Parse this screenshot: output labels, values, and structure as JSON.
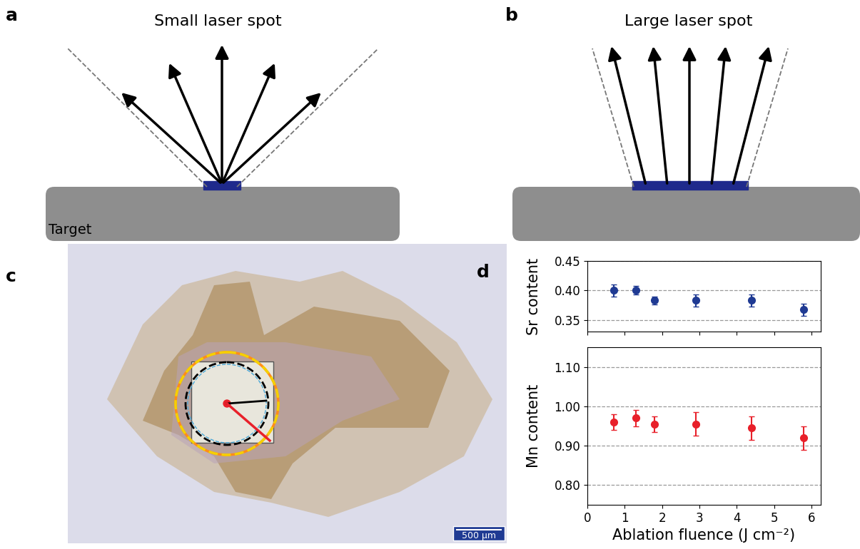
{
  "panels": {
    "a": {
      "panel_label": "a",
      "title": "Small laser spot",
      "target_label": "Target"
    },
    "b": {
      "panel_label": "b",
      "title": "Large laser spot"
    },
    "c": {
      "panel_label": "c",
      "scale_bar": "500 µm"
    }
  },
  "chart_data": [
    {
      "panel_label": "d",
      "type": "scatter",
      "y_label": "Sr content",
      "x": [
        0.7,
        1.3,
        1.8,
        2.9,
        4.4,
        5.8
      ],
      "values": [
        0.4,
        0.4,
        0.383,
        0.383,
        0.383,
        0.367
      ],
      "errors": [
        0.01,
        0.007,
        0.007,
        0.01,
        0.01,
        0.01
      ],
      "color": "#1f3a93",
      "marker": "o",
      "xlim": [
        0,
        6.25
      ],
      "xticks": [
        0,
        1,
        2,
        3,
        4,
        5,
        6
      ],
      "ylim": [
        0.33,
        0.45
      ],
      "yticks": [
        {
          "value": 0.35,
          "label": "0.35"
        },
        {
          "value": 0.4,
          "label": "0.40"
        },
        {
          "value": 0.45,
          "label": "0.45"
        }
      ],
      "grid": true,
      "tick_labels": "y"
    },
    {
      "type": "scatter",
      "y_label": "Mn content",
      "x_label": "Ablation fluence (J cm⁻²)",
      "x": [
        0.7,
        1.3,
        1.8,
        2.9,
        4.4,
        5.8
      ],
      "values": [
        0.96,
        0.97,
        0.955,
        0.955,
        0.945,
        0.92
      ],
      "errors": [
        0.02,
        0.02,
        0.02,
        0.03,
        0.03,
        0.03
      ],
      "color": "#e8202a",
      "marker": "o",
      "xlim": [
        0,
        6.25
      ],
      "xticks": [
        0,
        1,
        2,
        3,
        4,
        5,
        6
      ],
      "ylim": [
        0.75,
        1.15
      ],
      "yticks": [
        {
          "value": 0.8,
          "label": "0.80"
        },
        {
          "value": 0.9,
          "label": "0.90"
        },
        {
          "value": 1.0,
          "label": "1.00"
        },
        {
          "value": 1.1,
          "label": "1.10"
        }
      ],
      "grid": true
    }
  ]
}
